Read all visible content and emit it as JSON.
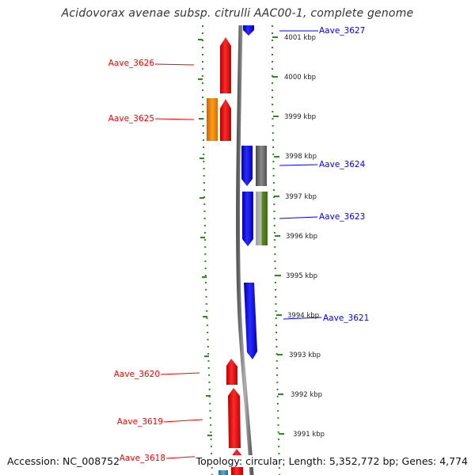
{
  "title": "Acidovorax avenae subsp. citrulli AAC00-1, complete genome",
  "footer": {
    "accession": "Accession: NC_008752",
    "topology": "Topology: circular; Length: 5,352,772 bp; Genes: 4,774"
  },
  "colors": {
    "forward_strand": "#ff0000",
    "reverse_strand": "#0000ff",
    "ruler_ticks": "#2e8b22",
    "backbone": "#7a7a7a"
  },
  "kbp_markers": [
    "4001 kbp",
    "4000 kbp",
    "3999 kbp",
    "3998 kbp",
    "3997 kbp",
    "3996 kbp",
    "3995 kbp",
    "3994 kbp",
    "3993 kbp",
    "3992 kbp",
    "3991 kbp"
  ],
  "genes": [
    {
      "name": "Aave_3627",
      "strand": "reverse",
      "color": "#0000ff"
    },
    {
      "name": "Aave_3626",
      "strand": "forward",
      "color": "#ff0000"
    },
    {
      "name": "Aave_3625",
      "strand": "forward",
      "color": "#ff0000"
    },
    {
      "name": "Aave_3624",
      "strand": "reverse",
      "color": "#0000ff"
    },
    {
      "name": "Aave_3623",
      "strand": "reverse",
      "color": "#0000ff"
    },
    {
      "name": "Aave_3621",
      "strand": "reverse",
      "color": "#0000ff"
    },
    {
      "name": "Aave_3620",
      "strand": "forward",
      "color": "#ff0000"
    },
    {
      "name": "Aave_3619",
      "strand": "forward",
      "color": "#ff0000"
    },
    {
      "name": "Aave_3618",
      "strand": "forward",
      "color": "#ff0000"
    }
  ]
}
